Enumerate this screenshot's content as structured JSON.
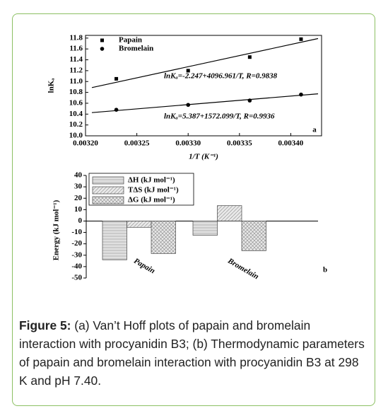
{
  "chart_data": [
    {
      "type": "scatter",
      "panel": "a",
      "x_label": "1/T (K⁻¹)",
      "y_label": "lnKₐ",
      "x": [
        0.00323,
        0.0033,
        0.00336,
        0.00341
      ],
      "series": [
        {
          "name": "Papain",
          "marker": "square",
          "color": "#000000",
          "values": [
            11.05,
            11.2,
            11.45,
            11.78
          ],
          "fit": {
            "intercept": -2.247,
            "slope": 4096.961
          },
          "annotation": "lnKₐ=-2.247+4096.961/T, R=0.9838"
        },
        {
          "name": "Bromelain",
          "marker": "circle",
          "color": "#000000",
          "values": [
            10.48,
            10.57,
            10.65,
            10.76
          ],
          "fit": {
            "intercept": 5.387,
            "slope": 1572.099
          },
          "annotation": "lnKₐ=5.387+1572.099/T, R=0.9936"
        }
      ],
      "xlim": [
        0.0032,
        0.00343
      ],
      "xticks": [
        {
          "value": 0.0032,
          "label": "0.00320"
        },
        {
          "value": 0.00325,
          "label": "0.00325"
        },
        {
          "value": 0.0033,
          "label": "0.00330"
        },
        {
          "value": 0.00335,
          "label": "0.00335"
        },
        {
          "value": 0.0034,
          "label": "0.00340"
        }
      ],
      "ylim": [
        10.0,
        11.85
      ],
      "yticks": [
        {
          "value": 10.0,
          "label": "10.0"
        },
        10.2,
        10.4,
        10.6,
        10.8,
        {
          "value": 11.0,
          "label": "11.0"
        },
        11.2,
        11.4,
        11.6,
        11.8
      ],
      "legend": "upper-left"
    },
    {
      "type": "bar",
      "panel": "b",
      "y_label": "Energy (kJ mol⁻¹)",
      "categories": [
        "Papain",
        "Bromelain"
      ],
      "series": [
        {
          "name": "ΔH (kJ mol⁻¹)",
          "pattern": "hlines",
          "color": "#e0e0e0",
          "values": [
            -34,
            -12.5
          ]
        },
        {
          "name": "TΔS (kJ mol⁻¹)",
          "pattern": "diag",
          "color": "#e8e8e8",
          "values": [
            -5.5,
            13.5
          ]
        },
        {
          "name": "ΔG (kJ mol⁻¹)",
          "pattern": "cross",
          "color": "#e8e8e8",
          "values": [
            -28.5,
            -26
          ]
        }
      ],
      "ylim": [
        -50,
        40
      ],
      "yticks": [
        -50,
        -40,
        -30,
        -20,
        -10,
        0,
        10,
        20,
        30,
        40
      ],
      "legend": "upper-left"
    }
  ],
  "caption": {
    "label": "Figure 5:",
    "text": "(a) Van’t Hoff plots of papain and bromelain interaction with procyanidin B3; (b) Thermodynamic parameters of papain and bromelain interaction with procyanidin B3 at 298 K and pH 7.40."
  }
}
